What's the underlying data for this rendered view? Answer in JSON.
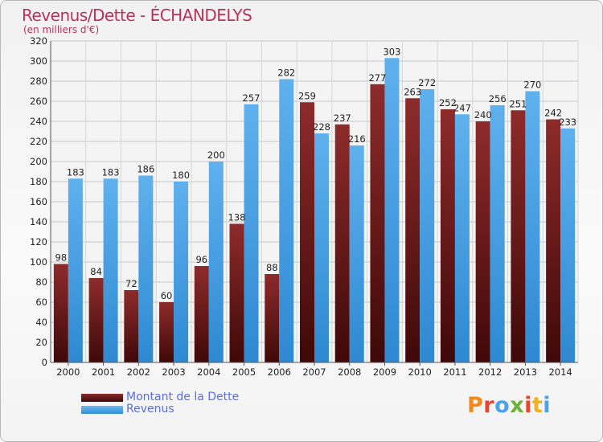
{
  "header": {
    "title": "Revenus/Dette - ÉCHANDELYS",
    "subtitle": "(en milliers d'€)"
  },
  "legend": {
    "dette_label": "Montant de la Dette",
    "revenus_label": "Revenus"
  },
  "logo": {
    "text": "Proxiti"
  },
  "chart_data": {
    "type": "bar",
    "categories": [
      "2000",
      "2001",
      "2002",
      "2003",
      "2004",
      "2005",
      "2006",
      "2007",
      "2008",
      "2009",
      "2010",
      "2011",
      "2012",
      "2013",
      "2014"
    ],
    "series": [
      {
        "name": "Montant de la Dette",
        "values": [
          98,
          84,
          72,
          60,
          96,
          138,
          88,
          259,
          237,
          277,
          263,
          252,
          240,
          251,
          242
        ],
        "color": "#6e1c1c"
      },
      {
        "name": "Revenus",
        "values": [
          183,
          183,
          186,
          180,
          200,
          257,
          282,
          228,
          216,
          303,
          272,
          247,
          256,
          270,
          233
        ],
        "color": "#4aa3e8"
      }
    ],
    "ylim": [
      0,
      320
    ],
    "yticks": [
      0,
      20,
      40,
      60,
      80,
      100,
      120,
      140,
      160,
      180,
      200,
      220,
      240,
      260,
      280,
      300,
      320
    ],
    "grid": true,
    "legend_position": "bottom-left"
  }
}
